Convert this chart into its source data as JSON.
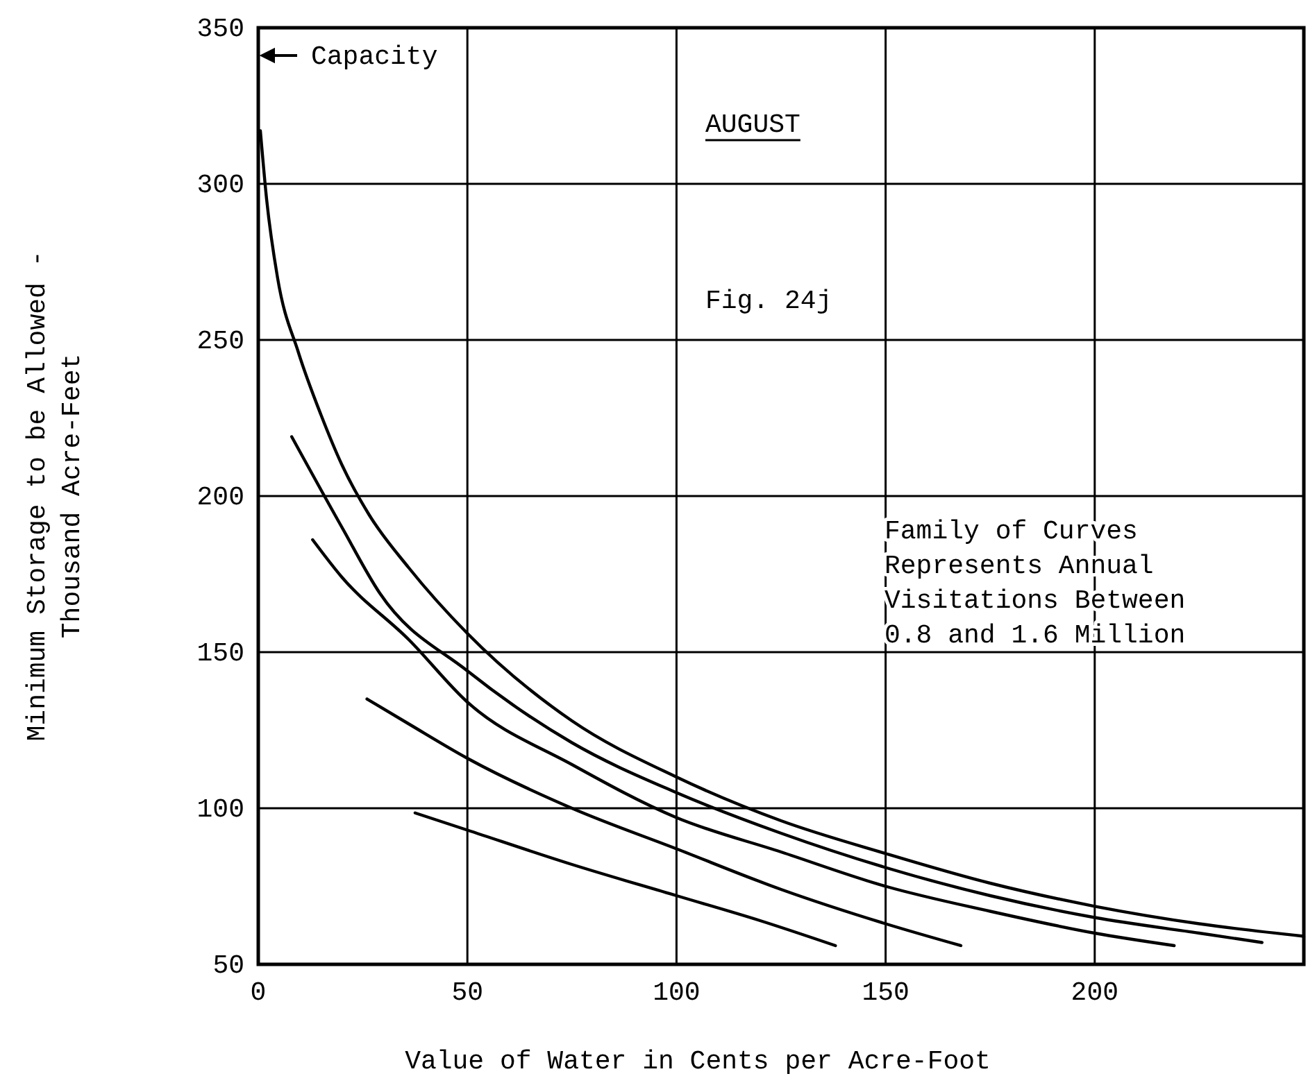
{
  "chart_data": {
    "type": "line",
    "xlabel": "Value of Water in Cents per Acre-Foot",
    "ylabel": "Minimum Storage to be Allowed -\nThousand Acre-Feet",
    "xlim": [
      0,
      250
    ],
    "ylim": [
      50,
      350
    ],
    "xticks": [
      0,
      50,
      100,
      150,
      200
    ],
    "yticks": [
      50,
      100,
      150,
      200,
      250,
      300,
      350
    ],
    "grid": true,
    "marker": "none",
    "line_style": "solid",
    "annotations": [
      "Capacity",
      "AUGUST",
      "Fig. 24j",
      "Family of Curves\nRepresents Annual\nVisitations Between\n0.8 and 1.6 Million"
    ],
    "series": [
      {
        "color": "#000000",
        "x": [
          37.5,
          50,
          75,
          100,
          120,
          138
        ],
        "values": [
          98.5,
          93,
          82,
          72,
          64,
          56
        ]
      },
      {
        "color": "#000000",
        "x": [
          26,
          36,
          50,
          75,
          100,
          125,
          150,
          168
        ],
        "values": [
          135,
          127,
          116,
          100,
          87,
          74,
          63,
          56
        ]
      },
      {
        "color": "#000000",
        "x": [
          13,
          20,
          36,
          50,
          75,
          100,
          125,
          150,
          175,
          200,
          219
        ],
        "values": [
          186,
          174,
          154,
          134,
          114,
          97,
          86,
          75,
          67,
          60,
          56
        ]
      },
      {
        "color": "#000000",
        "x": [
          8,
          20,
          29,
          50,
          75,
          100,
          125,
          150,
          175,
          200,
          225,
          240
        ],
        "values": [
          219,
          190,
          169,
          144,
          121,
          105,
          92,
          81,
          72,
          65,
          60,
          57
        ]
      },
      {
        "color": "#000000",
        "x": [
          0.5,
          2,
          4.6,
          9.6,
          15,
          20,
          26.5,
          36,
          50,
          75,
          100,
          125,
          150,
          175,
          200,
          225,
          250
        ],
        "values": [
          317,
          295,
          270,
          246,
          226,
          210,
          194,
          177,
          156,
          128,
          110,
          96,
          85.5,
          76,
          68.6,
          63,
          59
        ]
      }
    ]
  }
}
